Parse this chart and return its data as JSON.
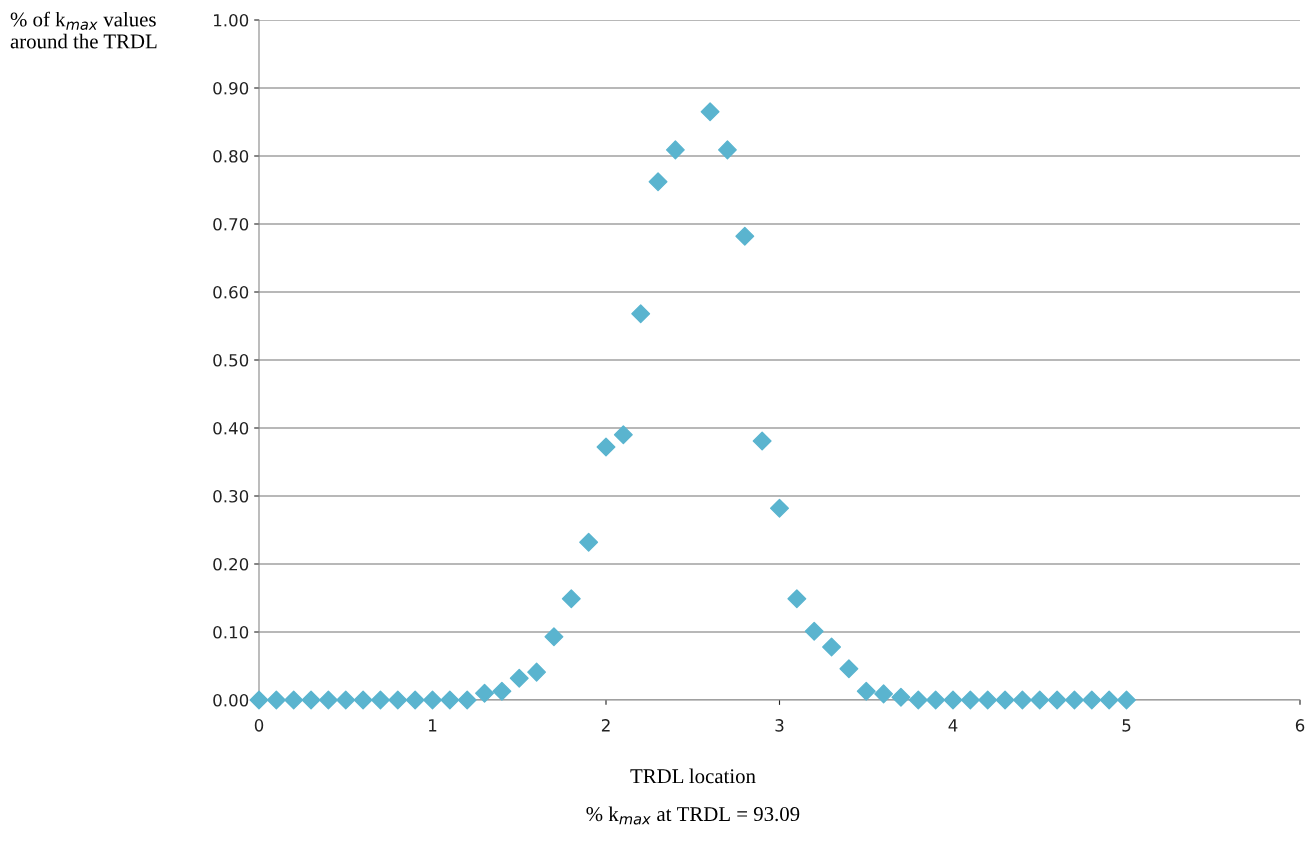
{
  "chart_data": {
    "type": "scatter",
    "xlabel": "TRDL location",
    "ylabel": "% of k$_{max}$ values around the TRDL",
    "annotations": [
      "% k$_{max}$ at TRDL = 93.09"
    ],
    "x": [
      0,
      0.1,
      0.2,
      0.3,
      0.4,
      0.5,
      0.6,
      0.7,
      0.8,
      0.9,
      1.0,
      1.1,
      1.2,
      1.3,
      1.4,
      1.5,
      1.6,
      1.7,
      1.8,
      1.9,
      2.0,
      2.1,
      2.2,
      2.3,
      2.4,
      2.6,
      2.7,
      2.8,
      2.9,
      3.0,
      3.1,
      3.2,
      3.3,
      3.4,
      3.5,
      3.6,
      3.7,
      3.8,
      3.9,
      4.0,
      4.1,
      4.2,
      4.3,
      4.4,
      4.5,
      4.6,
      4.7,
      4.8,
      4.9,
      5.0
    ],
    "series": [
      {
        "color": "#5ab4cf",
        "values": [
          0,
          0,
          0,
          0,
          0,
          0,
          0,
          0,
          0,
          0,
          0,
          0,
          0,
          0.01,
          0.013,
          0.032,
          0.041,
          0.093,
          0.149,
          0.232,
          0.372,
          0.39,
          0.568,
          0.762,
          0.809,
          0.865,
          0.809,
          0.682,
          0.381,
          0.282,
          0.149,
          0.101,
          0.078,
          0.046,
          0.013,
          0.009,
          0.004,
          0,
          0,
          0,
          0,
          0,
          0,
          0,
          0,
          0,
          0,
          0,
          0,
          0
        ]
      }
    ],
    "xlim": [
      0,
      6
    ],
    "xticks": [
      0,
      1,
      2,
      3,
      4,
      5,
      6
    ],
    "ylim": [
      0,
      1
    ],
    "yticks": [
      {
        "value": 0,
        "label": "0.00"
      },
      {
        "value": 0.1,
        "label": "0.10"
      },
      {
        "value": 0.2,
        "label": "0.20"
      },
      {
        "value": 0.3,
        "label": "0.30"
      },
      {
        "value": 0.4,
        "label": "0.40"
      },
      {
        "value": 0.5,
        "label": "0.50"
      },
      {
        "value": 0.6,
        "label": "0.60"
      },
      {
        "value": 0.7,
        "label": "0.70"
      },
      {
        "value": 0.8,
        "label": "0.80"
      },
      {
        "value": 0.9,
        "label": "0.90"
      },
      {
        "value": 1,
        "label": "1.00"
      }
    ],
    "grid": "y",
    "marker": "diamond",
    "legend": false
  }
}
